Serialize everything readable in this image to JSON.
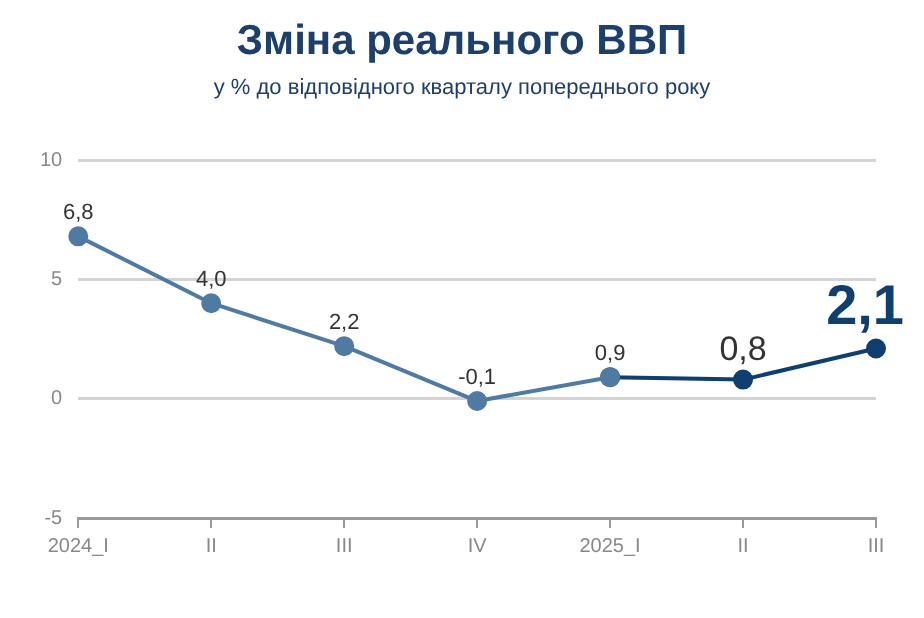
{
  "chart_data": {
    "type": "line",
    "title": "Зміна реального ВВП",
    "subtitle": "у % до відповідного кварталу попереднього року",
    "categories": [
      "2024_I",
      "II",
      "III",
      "IV",
      "2025_I",
      "II",
      "III"
    ],
    "series": [
      {
        "color": "#4f7ba3",
        "values": [
          6.8,
          4.0,
          2.2,
          -0.1,
          0.9,
          null,
          null
        ],
        "value_labels": [
          "6,8",
          "4,0",
          "2,2",
          "-0,1",
          null,
          null,
          null
        ]
      },
      {
        "color": "#0f3f6e",
        "values": [
          null,
          null,
          null,
          null,
          0.9,
          0.8,
          2.1
        ],
        "value_labels": [
          null,
          null,
          null,
          null,
          "0,9",
          "0,8",
          "2,1"
        ]
      }
    ],
    "ylim": [
      -5,
      10
    ],
    "yticks": [
      -5,
      0,
      5,
      10
    ],
    "grid": "y",
    "marker": "circle",
    "line_style": "solid"
  }
}
